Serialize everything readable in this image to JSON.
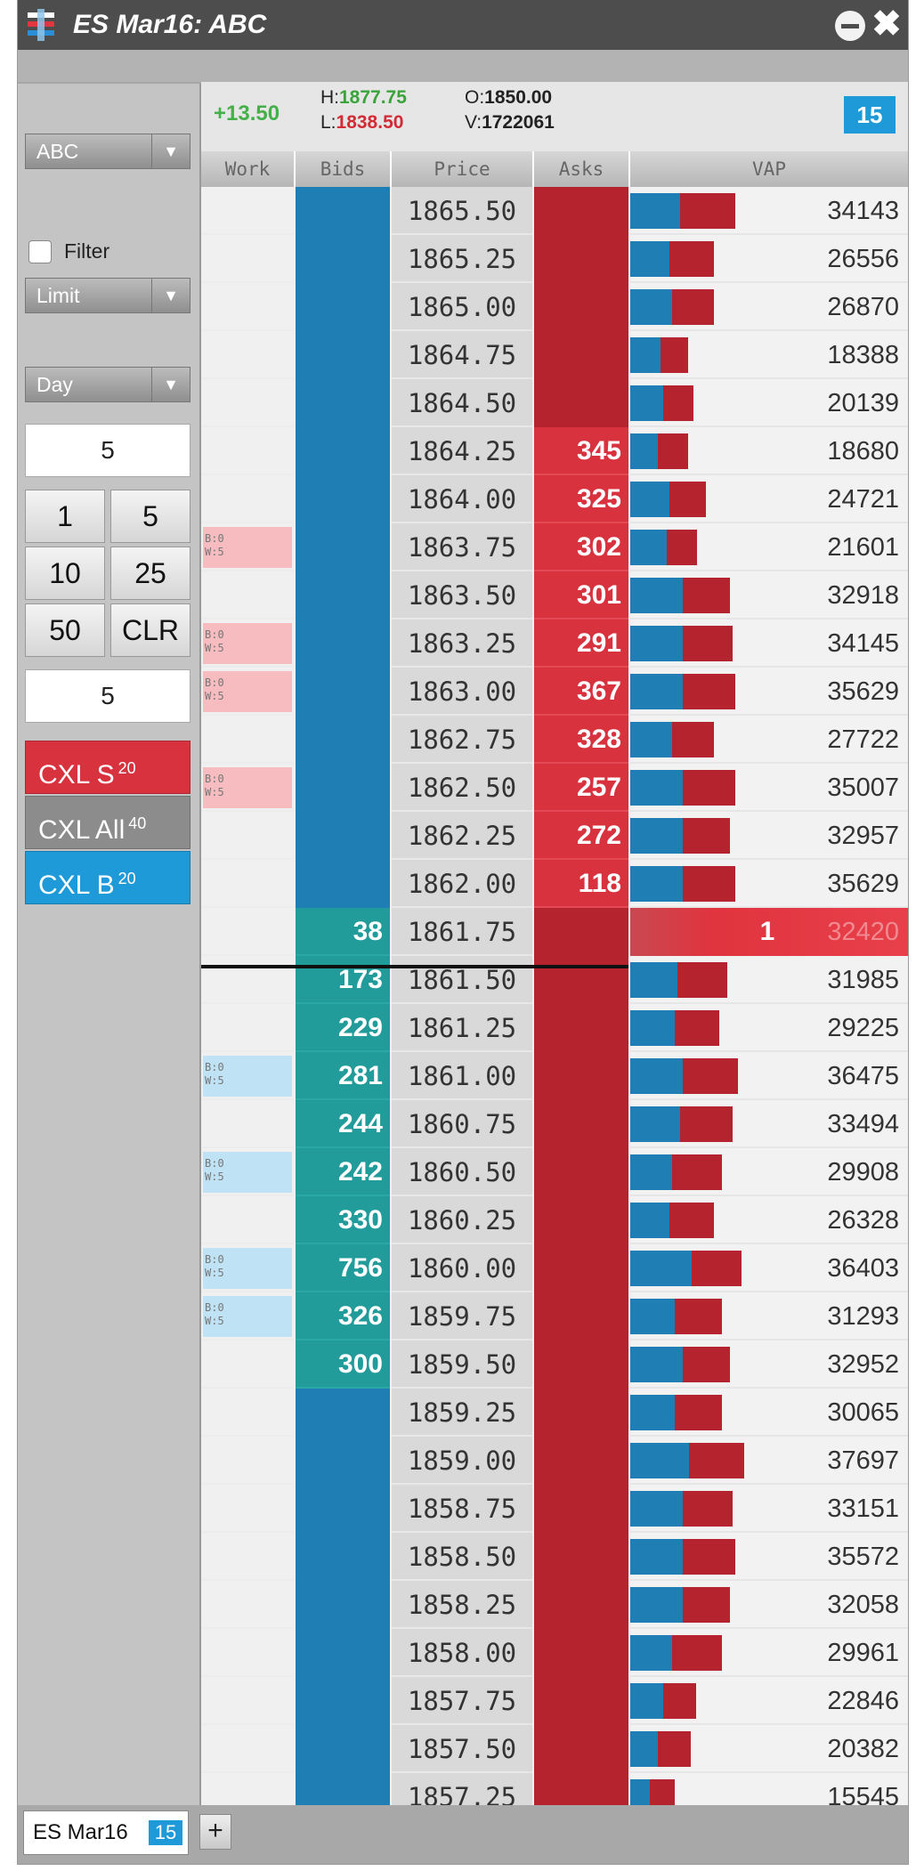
{
  "window": {
    "title": "ES Mar16: ABC",
    "close_glyph": "✖"
  },
  "left_panel": {
    "account_select": "ABC",
    "filter_label": "Filter",
    "order_type_select": "Limit",
    "duration_select": "Day",
    "order_qty": "5",
    "qty_buttons": [
      "1",
      "5",
      "10",
      "25",
      "50",
      "CLR"
    ],
    "working_qty": "5",
    "cancel_sell": {
      "label": "CXL S",
      "count": "20"
    },
    "cancel_all": {
      "label": "CXL All",
      "count": "40"
    },
    "cancel_buy": {
      "label": "CXL B",
      "count": "20"
    },
    "dropdown_arrow": "▼"
  },
  "header": {
    "net_change": "+13.50",
    "high_label": "H:",
    "high": "1877.75",
    "low_label": "L:",
    "low": "1838.50",
    "open_label": "O:",
    "open": "1850.00",
    "volume_label": "V:",
    "volume": "1722061",
    "qty_badge": "15"
  },
  "columns": [
    "Work",
    "Bids",
    "Price",
    "Asks",
    "VAP"
  ],
  "ladder": [
    {
      "price": "1865.50",
      "bid": "",
      "ask": "",
      "vap": "34143",
      "buy_frac": 0.18,
      "sell_frac": 0.2,
      "work": ""
    },
    {
      "price": "1865.25",
      "bid": "",
      "ask": "",
      "vap": "26556",
      "buy_frac": 0.14,
      "sell_frac": 0.16,
      "work": ""
    },
    {
      "price": "1865.00",
      "bid": "",
      "ask": "",
      "vap": "26870",
      "buy_frac": 0.15,
      "sell_frac": 0.15,
      "work": ""
    },
    {
      "price": "1864.75",
      "bid": "",
      "ask": "",
      "vap": "18388",
      "buy_frac": 0.11,
      "sell_frac": 0.1,
      "work": ""
    },
    {
      "price": "1864.50",
      "bid": "",
      "ask": "",
      "vap": "20139",
      "buy_frac": 0.12,
      "sell_frac": 0.11,
      "work": ""
    },
    {
      "price": "1864.25",
      "bid": "",
      "ask": "345",
      "vap": "18680",
      "buy_frac": 0.1,
      "sell_frac": 0.11,
      "work": ""
    },
    {
      "price": "1864.00",
      "bid": "",
      "ask": "325",
      "vap": "24721",
      "buy_frac": 0.14,
      "sell_frac": 0.13,
      "work": ""
    },
    {
      "price": "1863.75",
      "bid": "",
      "ask": "302",
      "vap": "21601",
      "buy_frac": 0.13,
      "sell_frac": 0.11,
      "work": "sell"
    },
    {
      "price": "1863.50",
      "bid": "",
      "ask": "301",
      "vap": "32918",
      "buy_frac": 0.19,
      "sell_frac": 0.17,
      "work": ""
    },
    {
      "price": "1863.25",
      "bid": "",
      "ask": "291",
      "vap": "34145",
      "buy_frac": 0.19,
      "sell_frac": 0.18,
      "work": "sell"
    },
    {
      "price": "1863.00",
      "bid": "",
      "ask": "367",
      "vap": "35629",
      "buy_frac": 0.19,
      "sell_frac": 0.19,
      "work": "sell"
    },
    {
      "price": "1862.75",
      "bid": "",
      "ask": "328",
      "vap": "27722",
      "buy_frac": 0.15,
      "sell_frac": 0.15,
      "work": ""
    },
    {
      "price": "1862.50",
      "bid": "",
      "ask": "257",
      "vap": "35007",
      "buy_frac": 0.19,
      "sell_frac": 0.19,
      "work": "sell"
    },
    {
      "price": "1862.25",
      "bid": "",
      "ask": "272",
      "vap": "32957",
      "buy_frac": 0.19,
      "sell_frac": 0.17,
      "work": ""
    },
    {
      "price": "1862.00",
      "bid": "",
      "ask": "118",
      "vap": "35629",
      "buy_frac": 0.19,
      "sell_frac": 0.19,
      "work": ""
    },
    {
      "price": "1861.75",
      "bid": "38",
      "ask": "",
      "vap": "32420",
      "buy_frac": 0.17,
      "sell_frac": 0.18,
      "work": "",
      "traded_qty": "1"
    },
    {
      "price": "1861.50",
      "bid": "173",
      "ask": "",
      "vap": "31985",
      "buy_frac": 0.17,
      "sell_frac": 0.18,
      "work": ""
    },
    {
      "price": "1861.25",
      "bid": "229",
      "ask": "",
      "vap": "29225",
      "buy_frac": 0.16,
      "sell_frac": 0.16,
      "work": ""
    },
    {
      "price": "1861.00",
      "bid": "281",
      "ask": "",
      "vap": "36475",
      "buy_frac": 0.19,
      "sell_frac": 0.2,
      "work": "buy"
    },
    {
      "price": "1860.75",
      "bid": "244",
      "ask": "",
      "vap": "33494",
      "buy_frac": 0.18,
      "sell_frac": 0.19,
      "work": ""
    },
    {
      "price": "1860.50",
      "bid": "242",
      "ask": "",
      "vap": "29908",
      "buy_frac": 0.15,
      "sell_frac": 0.18,
      "work": "buy"
    },
    {
      "price": "1860.25",
      "bid": "330",
      "ask": "",
      "vap": "26328",
      "buy_frac": 0.14,
      "sell_frac": 0.16,
      "work": ""
    },
    {
      "price": "1860.00",
      "bid": "756",
      "ask": "",
      "vap": "36403",
      "buy_frac": 0.22,
      "sell_frac": 0.18,
      "work": "buy"
    },
    {
      "price": "1859.75",
      "bid": "326",
      "ask": "",
      "vap": "31293",
      "buy_frac": 0.16,
      "sell_frac": 0.17,
      "work": "buy"
    },
    {
      "price": "1859.50",
      "bid": "300",
      "ask": "",
      "vap": "32952",
      "buy_frac": 0.19,
      "sell_frac": 0.17,
      "work": ""
    },
    {
      "price": "1859.25",
      "bid": "",
      "ask": "",
      "vap": "30065",
      "buy_frac": 0.16,
      "sell_frac": 0.17,
      "work": ""
    },
    {
      "price": "1859.00",
      "bid": "",
      "ask": "",
      "vap": "37697",
      "buy_frac": 0.21,
      "sell_frac": 0.2,
      "work": ""
    },
    {
      "price": "1858.75",
      "bid": "",
      "ask": "",
      "vap": "33151",
      "buy_frac": 0.19,
      "sell_frac": 0.18,
      "work": ""
    },
    {
      "price": "1858.50",
      "bid": "",
      "ask": "",
      "vap": "35572",
      "buy_frac": 0.19,
      "sell_frac": 0.19,
      "work": ""
    },
    {
      "price": "1858.25",
      "bid": "",
      "ask": "",
      "vap": "32058",
      "buy_frac": 0.19,
      "sell_frac": 0.17,
      "work": ""
    },
    {
      "price": "1858.00",
      "bid": "",
      "ask": "",
      "vap": "29961",
      "buy_frac": 0.15,
      "sell_frac": 0.18,
      "work": ""
    },
    {
      "price": "1857.75",
      "bid": "",
      "ask": "",
      "vap": "22846",
      "buy_frac": 0.12,
      "sell_frac": 0.12,
      "work": ""
    },
    {
      "price": "1857.50",
      "bid": "",
      "ask": "",
      "vap": "20382",
      "buy_frac": 0.1,
      "sell_frac": 0.12,
      "work": ""
    },
    {
      "price": "1857.25",
      "bid": "",
      "ask": "",
      "vap": "15545",
      "buy_frac": 0.07,
      "sell_frac": 0.09,
      "work": ""
    }
  ],
  "working_marker_text": "B:0\nW:5",
  "tabs": {
    "active_label": "ES Mar16",
    "active_badge": "15",
    "add_glyph": "+"
  },
  "colors": {
    "bid": "#1f7eb3",
    "bid_active": "#229c9a",
    "ask": "#b5232f",
    "ask_active": "#d8323f",
    "work_sell": "#f7bcc0",
    "work_buy": "#bfe3f5",
    "up": "#44b04a",
    "down": "#d12b35",
    "accent": "#1e9ad8"
  }
}
